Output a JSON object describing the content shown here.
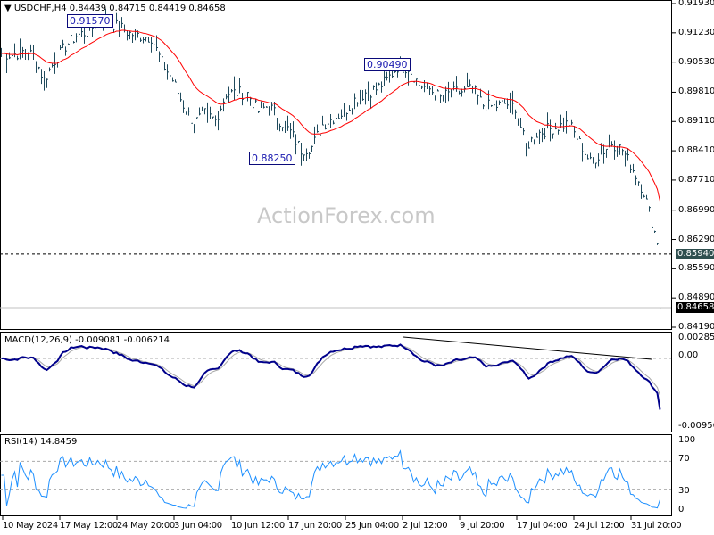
{
  "header": {
    "symbol": "USDCHF,H4",
    "ohlc": "0.84439 0.84715 0.84419 0.84658"
  },
  "watermark": "ActionForex.com",
  "annotations": [
    "0.91570",
    "0.88250",
    "0.90490"
  ],
  "price_tags": {
    "level": "0.85940",
    "current": "0.84658"
  },
  "macd": {
    "label": "MACD(12,26,9) -0.009081 -0.006214",
    "ticks": [
      "0.002854",
      "0.00",
      "-0.009566"
    ]
  },
  "rsi": {
    "label": "RSI(14) 14.8459",
    "ticks": [
      "100",
      "70",
      "30",
      "0"
    ]
  },
  "colors": {
    "bars": "#1f4a5c",
    "ma": "#ff0000",
    "macd": "#00008b",
    "signal": "#a9a9a9"
  },
  "chart_data": {
    "type": "ohlc",
    "title": "USDCHF,H4",
    "price_ticks": [
      "0.91930",
      "0.91230",
      "0.90530",
      "0.89810",
      "0.89110",
      "0.88410",
      "0.87710",
      "0.86990",
      "0.86290",
      "0.85590",
      "0.84890",
      "0.84190"
    ],
    "ylim": [
      0.8419,
      0.9193
    ],
    "time_ticks": [
      "10 May 2024",
      "17 May 12:00",
      "24 May 20:00",
      "3 Jun 04:00",
      "10 Jun 12:00",
      "17 Jun 20:00",
      "25 Jun 04:00",
      "2 Jul 12:00",
      "9 Jul 20:00",
      "17 Jul 04:00",
      "24 Jul 12:00",
      "31 Jul 20:00"
    ],
    "close": [
      0.9074,
      0.907,
      0.9078,
      0.907,
      0.901,
      0.9057,
      0.9091,
      0.9116,
      0.9125,
      0.9146,
      0.915,
      0.9138,
      0.9121,
      0.9116,
      0.9112,
      0.9052,
      0.901,
      0.895,
      0.8907,
      0.8929,
      0.8914,
      0.8978,
      0.898,
      0.8978,
      0.8935,
      0.895,
      0.8914,
      0.8886,
      0.8843,
      0.885,
      0.8903,
      0.892,
      0.8933,
      0.8963,
      0.898,
      0.8988,
      0.901,
      0.9042,
      0.904,
      0.8999,
      0.8988,
      0.8967,
      0.898,
      0.8982,
      0.8988,
      0.895,
      0.8946,
      0.8954,
      0.8946,
      0.885,
      0.8882,
      0.8892,
      0.8899,
      0.8907,
      0.886,
      0.8813,
      0.8835,
      0.886,
      0.8843,
      0.8796,
      0.8743,
      0.8647,
      0.8562,
      0.84658
    ],
    "horizontal_level": 0.8594,
    "macd_range": [
      -0.009566,
      0.002854
    ],
    "rsi_levels": [
      30,
      70
    ]
  }
}
